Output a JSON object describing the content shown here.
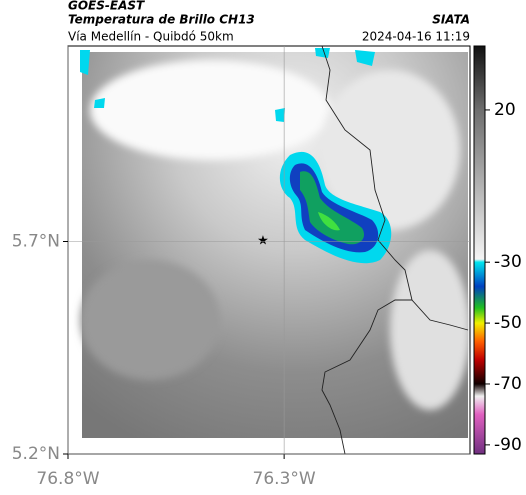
{
  "header": {
    "satellite": "GOES-EAST",
    "title": "Temperatura de Brillo CH13",
    "subtitle": "Vía Medellín - Quibdó 50km",
    "source": "SIATA",
    "datetime": "2024-04-16 11:19"
  },
  "map": {
    "xlim": [
      -76.8,
      -75.87
    ],
    "ylim": [
      5.2,
      6.16
    ],
    "xticks": [
      {
        "value": -76.8,
        "label": "76.8°W"
      },
      {
        "value": -76.3,
        "label": "76.3°W"
      }
    ],
    "yticks": [
      {
        "value": 5.7,
        "label": "5.7°N"
      },
      {
        "value": 5.2,
        "label": "5.2°N"
      }
    ],
    "grid": true
  },
  "colorbar": {
    "lim": [
      -93,
      41
    ],
    "ticks": [
      20,
      -30,
      -50,
      -70,
      -90
    ],
    "stops": [
      {
        "value": 41,
        "color": "#111111"
      },
      {
        "value": 20,
        "color": "#6e6e6e"
      },
      {
        "value": -29,
        "color": "#f4f4f4"
      },
      {
        "value": -30,
        "color": "#00e5ee"
      },
      {
        "value": -38,
        "color": "#0040c0"
      },
      {
        "value": -45,
        "color": "#20c020"
      },
      {
        "value": -50,
        "color": "#f0f000"
      },
      {
        "value": -56,
        "color": "#ff6000"
      },
      {
        "value": -62,
        "color": "#c00000"
      },
      {
        "value": -70,
        "color": "#100000"
      },
      {
        "value": -74,
        "color": "#f0f0f0"
      },
      {
        "value": -80,
        "color": "#e060c0"
      },
      {
        "value": -93,
        "color": "#703080"
      }
    ]
  }
}
